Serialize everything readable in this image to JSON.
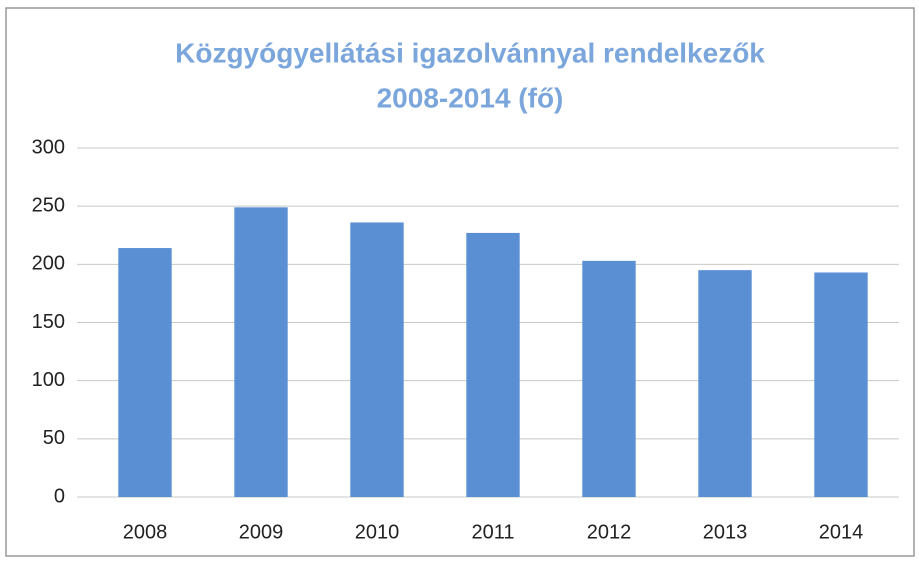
{
  "chart_data": {
    "type": "bar",
    "title": [
      "Közgyógyellátási igazolvánnyal rendelkezők",
      "2008-2014 (fő)"
    ],
    "categories": [
      "2008",
      "2009",
      "2010",
      "2011",
      "2012",
      "2013",
      "2014"
    ],
    "values": [
      214,
      249,
      236,
      227,
      203,
      195,
      193
    ],
    "color": "#5b8fd4",
    "ylim": [
      0,
      300
    ],
    "yticks": [
      0,
      50,
      100,
      150,
      200,
      250,
      300
    ],
    "grid": true
  }
}
